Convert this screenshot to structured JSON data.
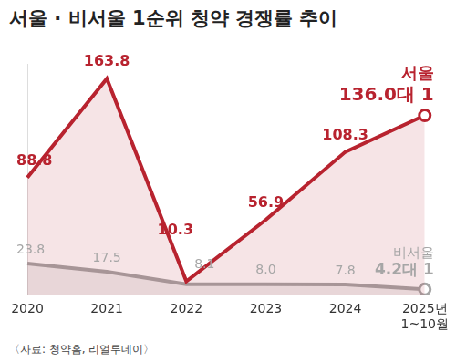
{
  "chart_data": {
    "type": "line",
    "title": "서울 · 비서울 1순위 청약 경쟁률 추이",
    "source": "〈자료: 청약홈, 리얼투데이〉",
    "categories": [
      "2020",
      "2021",
      "2022",
      "2023",
      "2024",
      "2025년\n1~10월"
    ],
    "series": [
      {
        "name": "서울",
        "color": "#b8232f",
        "values": [
          88.8,
          163.8,
          10.3,
          56.9,
          108.3,
          136.0
        ],
        "value_labels": [
          "88.8",
          "163.8",
          "10.3",
          "56.9",
          "108.3",
          "136.0대 1"
        ]
      },
      {
        "name": "비서울",
        "color": "#a6a6a6",
        "values": [
          23.8,
          17.5,
          8.1,
          8.0,
          7.8,
          4.2
        ],
        "value_labels": [
          "23.8",
          "17.5",
          "8.1",
          "8.0",
          "7.8",
          "4.2대 1"
        ]
      }
    ],
    "ylim": [
      0,
      175
    ],
    "yticks": [],
    "grid": false,
    "data_labels": true,
    "tick_labels": "x"
  }
}
